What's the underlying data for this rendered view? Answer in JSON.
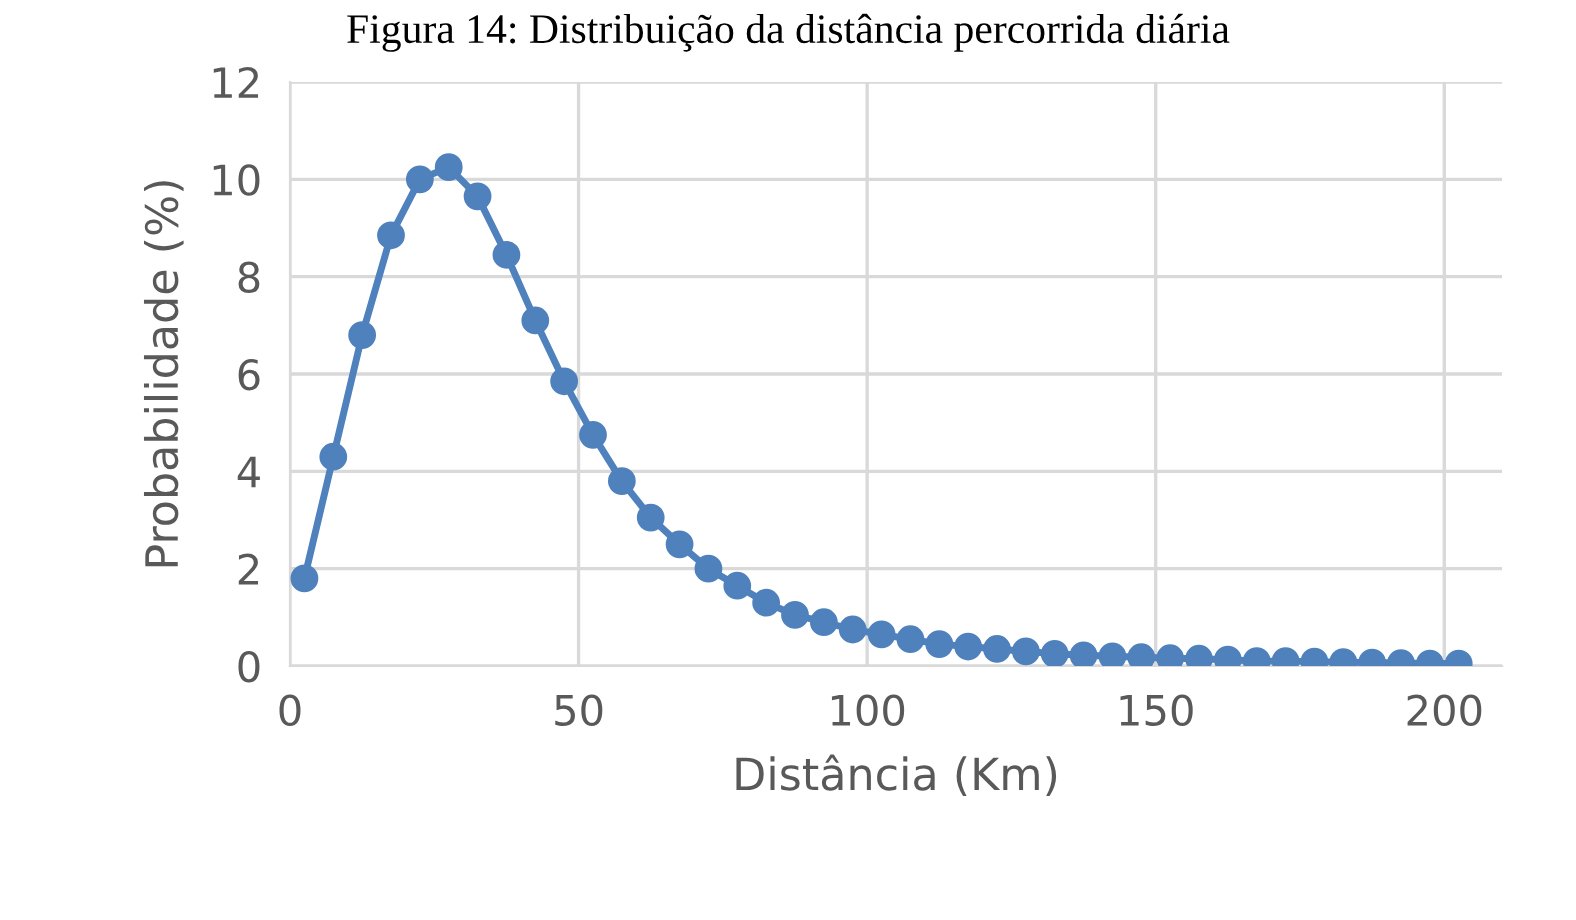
{
  "chart_data": {
    "type": "line",
    "title": "Figura 14: Distribuição da distância percorrida diária",
    "xlabel": "Distância (Km)",
    "ylabel": "Probabilidade (%)",
    "x": [
      2.5,
      7.5,
      12.5,
      17.5,
      22.5,
      27.5,
      32.5,
      37.5,
      42.5,
      47.5,
      52.5,
      57.5,
      62.5,
      67.5,
      72.5,
      77.5,
      82.5,
      87.5,
      92.5,
      97.5,
      102.5,
      107.5,
      112.5,
      117.5,
      122.5,
      127.5,
      132.5,
      137.5,
      142.5,
      147.5,
      152.5,
      157.5,
      162.5,
      167.5,
      172.5,
      177.5,
      182.5,
      187.5,
      192.5,
      197.5,
      202.5
    ],
    "series": [
      {
        "color": "#4f81bd",
        "values": [
          1.8,
          4.3,
          6.8,
          8.85,
          10.0,
          10.25,
          9.65,
          8.45,
          7.1,
          5.85,
          4.75,
          3.8,
          3.05,
          2.5,
          2.0,
          1.65,
          1.3,
          1.05,
          0.9,
          0.75,
          0.65,
          0.55,
          0.45,
          0.4,
          0.35,
          0.3,
          0.25,
          0.22,
          0.2,
          0.18,
          0.16,
          0.15,
          0.13,
          0.1,
          0.1,
          0.09,
          0.08,
          0.07,
          0.06,
          0.05,
          0.05
        ]
      }
    ],
    "xlim": [
      0,
      210
    ],
    "ylim": [
      0,
      12
    ],
    "xticks": [
      0,
      50,
      100,
      150,
      200
    ],
    "yticks": [
      0,
      2,
      4,
      6,
      8,
      10,
      12
    ],
    "grid": true,
    "marker": "circle",
    "line_style": "solid"
  }
}
